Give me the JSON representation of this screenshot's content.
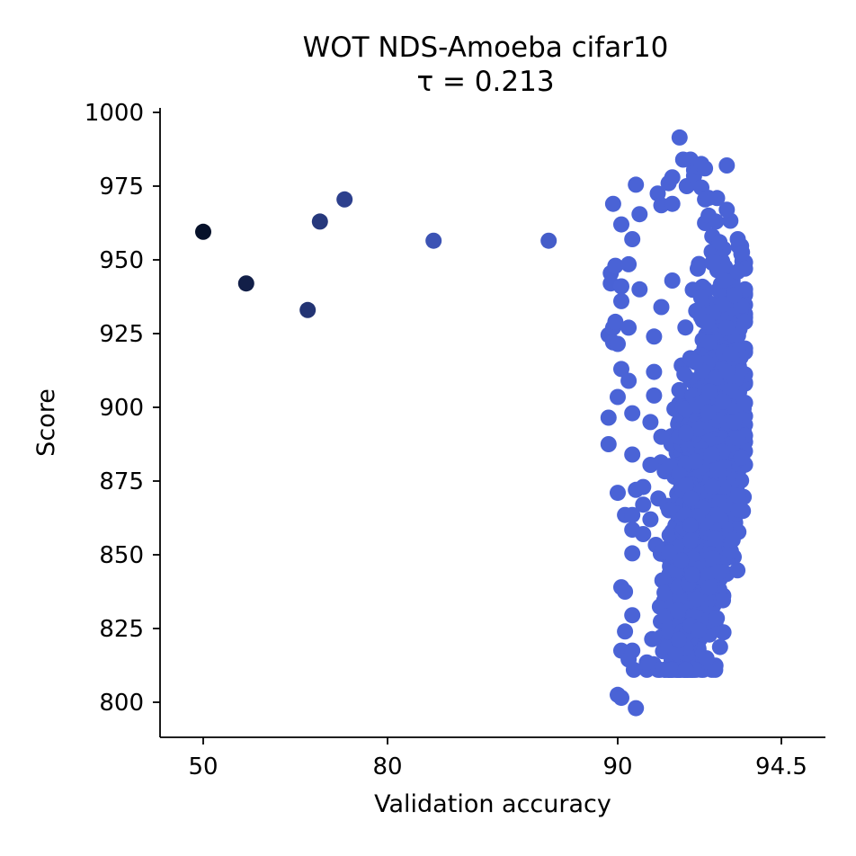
{
  "chart_data": {
    "type": "scatter",
    "title": "WOT NDS-Amoeba cifar10",
    "subtitle": "τ = 0.213",
    "xlabel": "Validation accuracy",
    "ylabel": "Score",
    "x_ticks": [
      "50",
      "80",
      "90",
      "94.5"
    ],
    "y_ticks": [
      800,
      825,
      850,
      875,
      900,
      925,
      950,
      975,
      1000
    ],
    "ylim": [
      788,
      1002
    ],
    "grid": false,
    "colors": {
      "dark": "#06112a",
      "mid": "#1d3587",
      "main": "#4a63d6"
    },
    "outliers": [
      {
        "x": 50,
        "y": 959.5
      },
      {
        "x": 57,
        "y": 942
      },
      {
        "x": 67,
        "y": 933
      },
      {
        "x": 69,
        "y": 963
      },
      {
        "x": 73,
        "y": 970.5
      },
      {
        "x": 82,
        "y": 956.5
      },
      {
        "x": 87,
        "y": 956.5
      }
    ],
    "cluster_points": [
      {
        "x": 89.6,
        "y": 924.5
      },
      {
        "x": 89.8,
        "y": 927
      },
      {
        "x": 89.8,
        "y": 922
      },
      {
        "x": 89.6,
        "y": 896.5
      },
      {
        "x": 89.6,
        "y": 887.5
      },
      {
        "x": 89.7,
        "y": 945.5
      },
      {
        "x": 89.7,
        "y": 942
      },
      {
        "x": 89.8,
        "y": 969
      },
      {
        "x": 89.9,
        "y": 929
      },
      {
        "x": 89.9,
        "y": 948
      },
      {
        "x": 90.0,
        "y": 921.5
      },
      {
        "x": 90.0,
        "y": 903.5
      },
      {
        "x": 90.0,
        "y": 871
      },
      {
        "x": 90.1,
        "y": 962
      },
      {
        "x": 90.1,
        "y": 941
      },
      {
        "x": 90.1,
        "y": 936
      },
      {
        "x": 90.1,
        "y": 913
      },
      {
        "x": 90.1,
        "y": 839
      },
      {
        "x": 90.1,
        "y": 817.5
      },
      {
        "x": 90.0,
        "y": 802.5
      },
      {
        "x": 90.1,
        "y": 801.5
      },
      {
        "x": 90.2,
        "y": 863.5
      },
      {
        "x": 90.2,
        "y": 837.5
      },
      {
        "x": 90.2,
        "y": 824
      },
      {
        "x": 90.3,
        "y": 948.5
      },
      {
        "x": 90.3,
        "y": 927
      },
      {
        "x": 90.3,
        "y": 909
      },
      {
        "x": 90.3,
        "y": 814.5
      },
      {
        "x": 90.4,
        "y": 957
      },
      {
        "x": 90.4,
        "y": 898
      },
      {
        "x": 90.4,
        "y": 884
      },
      {
        "x": 90.4,
        "y": 863.5
      },
      {
        "x": 90.4,
        "y": 858.5
      },
      {
        "x": 90.4,
        "y": 850.5
      },
      {
        "x": 90.4,
        "y": 829.5
      },
      {
        "x": 90.4,
        "y": 817.5
      },
      {
        "x": 90.5,
        "y": 798
      },
      {
        "x": 90.5,
        "y": 975.5
      },
      {
        "x": 90.5,
        "y": 872
      },
      {
        "x": 90.6,
        "y": 965.5
      },
      {
        "x": 90.6,
        "y": 940
      },
      {
        "x": 90.7,
        "y": 873
      },
      {
        "x": 90.7,
        "y": 867
      },
      {
        "x": 90.7,
        "y": 857
      },
      {
        "x": 90.8,
        "y": 811
      },
      {
        "x": 90.8,
        "y": 813.5
      },
      {
        "x": 90.9,
        "y": 880.5
      },
      {
        "x": 90.9,
        "y": 862
      },
      {
        "x": 91.1,
        "y": 972.5
      },
      {
        "x": 91.2,
        "y": 968.5
      },
      {
        "x": 91.4,
        "y": 976
      },
      {
        "x": 91.5,
        "y": 978
      },
      {
        "x": 91.5,
        "y": 969
      },
      {
        "x": 91.7,
        "y": 991.5
      },
      {
        "x": 91.8,
        "y": 984
      },
      {
        "x": 91.9,
        "y": 975
      },
      {
        "x": 92.0,
        "y": 984
      },
      {
        "x": 92.1,
        "y": 980.5
      },
      {
        "x": 92.1,
        "y": 978.5
      },
      {
        "x": 92.2,
        "y": 981.5
      },
      {
        "x": 92.3,
        "y": 982.5
      },
      {
        "x": 92.3,
        "y": 974.5
      },
      {
        "x": 92.4,
        "y": 981
      },
      {
        "x": 92.4,
        "y": 970.5
      },
      {
        "x": 92.4,
        "y": 962.5
      },
      {
        "x": 92.5,
        "y": 971
      },
      {
        "x": 92.5,
        "y": 965
      },
      {
        "x": 92.6,
        "y": 958
      },
      {
        "x": 92.6,
        "y": 949
      },
      {
        "x": 92.7,
        "y": 963
      },
      {
        "x": 92.8,
        "y": 956
      },
      {
        "x": 92.9,
        "y": 943
      },
      {
        "x": 93.0,
        "y": 967
      },
      {
        "x": 92.9,
        "y": 935
      },
      {
        "x": 93.0,
        "y": 927
      },
      {
        "x": 93.1,
        "y": 918
      },
      {
        "x": 93.1,
        "y": 905.5
      },
      {
        "x": 93.2,
        "y": 895
      },
      {
        "x": 93.3,
        "y": 889.5
      },
      {
        "x": 93.4,
        "y": 883
      },
      {
        "x": 93.3,
        "y": 870
      },
      {
        "x": 92.2,
        "y": 863
      },
      {
        "x": 92.0,
        "y": 860
      },
      {
        "x": 92.6,
        "y": 873
      },
      {
        "x": 92.2,
        "y": 947
      },
      {
        "x": 93.0,
        "y": 982
      },
      {
        "x": 93.3,
        "y": 957
      },
      {
        "x": 93.4,
        "y": 952
      },
      {
        "x": 93.5,
        "y": 947
      },
      {
        "x": 93.5,
        "y": 940
      },
      {
        "x": 93.4,
        "y": 934.5
      },
      {
        "x": 93.5,
        "y": 929
      },
      {
        "x": 93.3,
        "y": 946
      },
      {
        "x": 93.2,
        "y": 938
      },
      {
        "x": 93.0,
        "y": 912
      },
      {
        "x": 92.9,
        "y": 902
      },
      {
        "x": 91.0,
        "y": 924
      },
      {
        "x": 91.0,
        "y": 912
      },
      {
        "x": 91.2,
        "y": 934
      },
      {
        "x": 91.5,
        "y": 943
      },
      {
        "x": 91.0,
        "y": 904
      },
      {
        "x": 90.9,
        "y": 895
      },
      {
        "x": 91.2,
        "y": 890
      }
    ],
    "cluster": {
      "count": 1500,
      "x_range": [
        90.3,
        93.5
      ],
      "mean_x": 92.4,
      "sd_x": 0.5,
      "slope_per_pct": 35,
      "base_y": 873,
      "sd_y": 26,
      "y_min": 811
    }
  }
}
